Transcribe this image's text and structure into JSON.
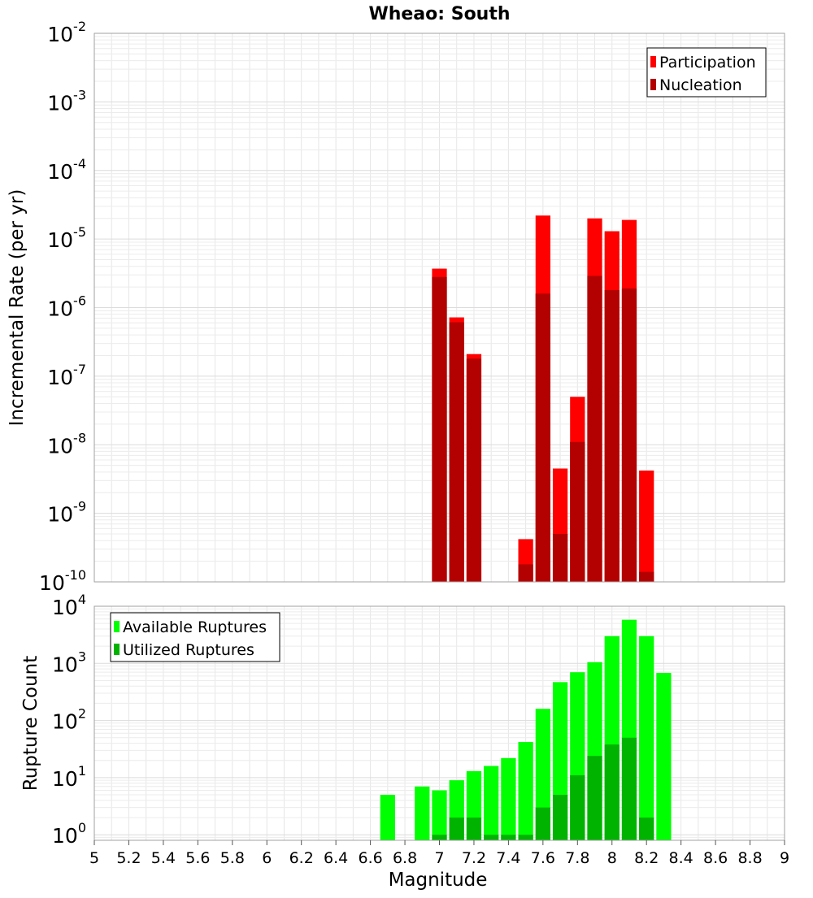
{
  "chart_data": [
    {
      "type": "bar",
      "title": "Wheao: South",
      "ylabel": "Incremental Rate (per yr)",
      "xlim": [
        5,
        9
      ],
      "ylim": [
        1e-10,
        0.01
      ],
      "yscale": "log",
      "grid": true,
      "legend_position": "top-right",
      "ytick_exponents": [
        "-10",
        "-9",
        "-8",
        "-7",
        "-6",
        "-5",
        "-4",
        "-3",
        "-2"
      ],
      "ytick_base": "10",
      "x": [
        7.0,
        7.1,
        7.2,
        7.5,
        7.6,
        7.7,
        7.8,
        7.9,
        8.0,
        8.1,
        8.2
      ],
      "series": [
        {
          "name": "Participation",
          "color": "#ff0000",
          "values": [
            3.7e-06,
            7.2e-07,
            2.1e-07,
            4.2e-10,
            2.2e-05,
            4.5e-09,
            5e-08,
            2e-05,
            1.3e-05,
            1.9e-05,
            4.2e-09
          ]
        },
        {
          "name": "Nucleation",
          "color": "#b30000",
          "values": [
            2.8e-06,
            6.1e-07,
            1.8e-07,
            1.8e-10,
            1.6e-06,
            5e-10,
            1.1e-08,
            2.9e-06,
            1.8e-06,
            1.9e-06,
            1.4e-10
          ]
        }
      ]
    },
    {
      "type": "bar",
      "ylabel": "Rupture Count",
      "xlabel": "Magnitude",
      "xlim": [
        5,
        9
      ],
      "ylim": [
        0.8,
        10000.0
      ],
      "yscale": "log",
      "grid": true,
      "legend_position": "top-left",
      "ytick_exponents": [
        "0",
        "1",
        "2",
        "3",
        "4"
      ],
      "ytick_base": "10",
      "xticks": [
        "5",
        "5.2",
        "5.4",
        "5.6",
        "5.8",
        "6",
        "6.2",
        "6.4",
        "6.6",
        "6.8",
        "7",
        "7.2",
        "7.4",
        "7.6",
        "7.8",
        "8",
        "8.2",
        "8.4",
        "8.6",
        "8.8",
        "9"
      ],
      "x": [
        6.7,
        6.9,
        7.0,
        7.1,
        7.2,
        7.3,
        7.4,
        7.5,
        7.6,
        7.7,
        7.8,
        7.9,
        8.0,
        8.1,
        8.2,
        8.3
      ],
      "series": [
        {
          "name": "Available Ruptures",
          "color": "#00ff00",
          "values": [
            5,
            7,
            6,
            9,
            13,
            16,
            22,
            42,
            160,
            470,
            700,
            1050,
            3000,
            5800,
            3000,
            680
          ]
        },
        {
          "name": "Utilized Ruptures",
          "color": "#00b300",
          "values": [
            0,
            0,
            1,
            2,
            2,
            1,
            1,
            1,
            3,
            5,
            11,
            24,
            38,
            50,
            2,
            0
          ]
        }
      ]
    }
  ]
}
